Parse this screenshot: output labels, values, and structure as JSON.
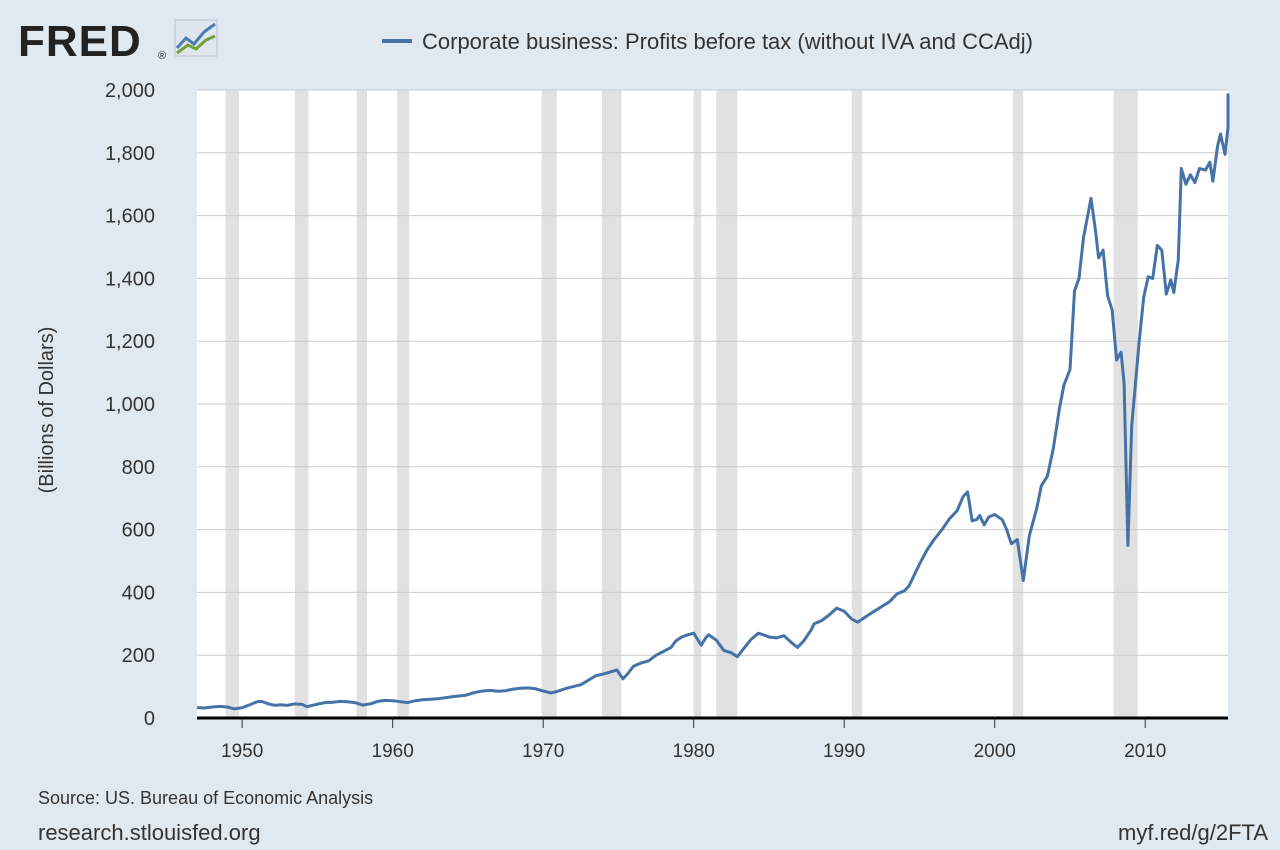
{
  "logo": {
    "text": "FRED",
    "registered": "®"
  },
  "legend": {
    "label": "Corporate business: Profits before tax (without IVA and CCAdj)"
  },
  "colors": {
    "series": "#4572a7",
    "background": "#e1e9f0",
    "plot": "#ffffff",
    "recession": "#e1e1e1",
    "grid": "#cccccc"
  },
  "footer": {
    "source": "Source: US. Bureau of Economic Analysis",
    "site": "research.stlouisfed.org",
    "shortlink": "myf.red/g/2FTA"
  },
  "chart_data": {
    "type": "line",
    "ylabel": "(Billions of Dollars)",
    "xlim": [
      1947.0,
      2015.5
    ],
    "ylim": [
      0,
      2000
    ],
    "yticks": [
      0,
      200,
      400,
      600,
      800,
      1000,
      1200,
      1400,
      1600,
      1800,
      2000
    ],
    "yticklabels": [
      "0",
      "200",
      "400",
      "600",
      "800",
      "1,000",
      "1,200",
      "1,400",
      "1,600",
      "1,800",
      "2,000"
    ],
    "xticks": [
      1950,
      1960,
      1970,
      1980,
      1990,
      2000,
      2010
    ],
    "xticklabels": [
      "1950",
      "1960",
      "1970",
      "1980",
      "1990",
      "2000",
      "2010"
    ],
    "grid": true,
    "legend_position": "top",
    "recessions": [
      [
        1948.9,
        1949.8
      ],
      [
        1953.5,
        1954.4
      ],
      [
        1957.6,
        1958.3
      ],
      [
        1960.3,
        1961.1
      ],
      [
        1969.9,
        1970.9
      ],
      [
        1973.9,
        1975.2
      ],
      [
        1980.0,
        1980.5
      ],
      [
        1981.5,
        1982.9
      ],
      [
        1990.5,
        1991.2
      ],
      [
        2001.2,
        2001.9
      ],
      [
        2007.9,
        2009.5
      ]
    ],
    "series": [
      {
        "name": "Corporate business: Profits before tax (without IVA and CCAdj)",
        "points": [
          [
            1947.0,
            33
          ],
          [
            1947.5,
            32
          ],
          [
            1948.0,
            35
          ],
          [
            1948.5,
            37
          ],
          [
            1949.0,
            35
          ],
          [
            1949.5,
            29
          ],
          [
            1950.0,
            33
          ],
          [
            1950.5,
            42
          ],
          [
            1951.0,
            52
          ],
          [
            1951.3,
            53
          ],
          [
            1951.8,
            44
          ],
          [
            1952.2,
            40
          ],
          [
            1952.5,
            42
          ],
          [
            1953.0,
            40
          ],
          [
            1953.5,
            45
          ],
          [
            1954.0,
            43
          ],
          [
            1954.3,
            36
          ],
          [
            1955.0,
            44
          ],
          [
            1955.5,
            49
          ],
          [
            1956.0,
            50
          ],
          [
            1956.5,
            53
          ],
          [
            1957.0,
            52
          ],
          [
            1957.5,
            49
          ],
          [
            1958.0,
            41
          ],
          [
            1958.5,
            45
          ],
          [
            1959.0,
            53
          ],
          [
            1959.5,
            56
          ],
          [
            1960.0,
            55
          ],
          [
            1960.5,
            52
          ],
          [
            1961.0,
            49
          ],
          [
            1961.5,
            55
          ],
          [
            1962.0,
            58
          ],
          [
            1963.0,
            61
          ],
          [
            1964.0,
            68
          ],
          [
            1964.8,
            72
          ],
          [
            1965.5,
            82
          ],
          [
            1966.0,
            86
          ],
          [
            1966.5,
            88
          ],
          [
            1967.0,
            85
          ],
          [
            1967.5,
            87
          ],
          [
            1968.0,
            92
          ],
          [
            1968.5,
            95
          ],
          [
            1969.0,
            96
          ],
          [
            1969.5,
            93
          ],
          [
            1970.0,
            86
          ],
          [
            1970.5,
            80
          ],
          [
            1970.9,
            84
          ],
          [
            1971.5,
            94
          ],
          [
            1972.0,
            100
          ],
          [
            1972.5,
            106
          ],
          [
            1973.0,
            120
          ],
          [
            1973.5,
            135
          ],
          [
            1974.0,
            140
          ],
          [
            1974.5,
            147
          ],
          [
            1974.9,
            153
          ],
          [
            1975.3,
            125
          ],
          [
            1975.6,
            140
          ],
          [
            1976.0,
            165
          ],
          [
            1976.5,
            175
          ],
          [
            1977.0,
            182
          ],
          [
            1977.5,
            200
          ],
          [
            1978.0,
            212
          ],
          [
            1978.5,
            225
          ],
          [
            1978.8,
            245
          ],
          [
            1979.2,
            258
          ],
          [
            1979.6,
            265
          ],
          [
            1980.0,
            270
          ],
          [
            1980.5,
            232
          ],
          [
            1980.8,
            255
          ],
          [
            1981.0,
            265
          ],
          [
            1981.5,
            248
          ],
          [
            1982.0,
            215
          ],
          [
            1982.5,
            208
          ],
          [
            1982.9,
            195
          ],
          [
            1983.3,
            220
          ],
          [
            1983.8,
            250
          ],
          [
            1984.3,
            270
          ],
          [
            1984.8,
            262
          ],
          [
            1985.0,
            258
          ],
          [
            1985.5,
            255
          ],
          [
            1986.0,
            262
          ],
          [
            1986.5,
            240
          ],
          [
            1986.9,
            225
          ],
          [
            1987.3,
            245
          ],
          [
            1987.8,
            280
          ],
          [
            1988.0,
            300
          ],
          [
            1988.5,
            310
          ],
          [
            1989.0,
            328
          ],
          [
            1989.5,
            350
          ],
          [
            1990.0,
            340
          ],
          [
            1990.5,
            315
          ],
          [
            1990.9,
            305
          ],
          [
            1991.5,
            325
          ],
          [
            1992.0,
            340
          ],
          [
            1992.5,
            355
          ],
          [
            1993.0,
            370
          ],
          [
            1993.5,
            395
          ],
          [
            1994.0,
            405
          ],
          [
            1994.3,
            420
          ],
          [
            1994.7,
            460
          ],
          [
            1995.0,
            490
          ],
          [
            1995.5,
            535
          ],
          [
            1996.0,
            570
          ],
          [
            1996.5,
            600
          ],
          [
            1997.0,
            635
          ],
          [
            1997.5,
            660
          ],
          [
            1997.9,
            705
          ],
          [
            1998.2,
            720
          ],
          [
            1998.5,
            628
          ],
          [
            1998.8,
            632
          ],
          [
            1999.0,
            645
          ],
          [
            1999.3,
            615
          ],
          [
            1999.6,
            640
          ],
          [
            2000.0,
            648
          ],
          [
            2000.5,
            632
          ],
          [
            2000.8,
            600
          ],
          [
            2001.1,
            555
          ],
          [
            2001.5,
            568
          ],
          [
            2001.9,
            438
          ],
          [
            2002.3,
            580
          ],
          [
            2002.8,
            670
          ],
          [
            2003.1,
            740
          ],
          [
            2003.5,
            770
          ],
          [
            2003.9,
            860
          ],
          [
            2004.3,
            985
          ],
          [
            2004.6,
            1060
          ],
          [
            2005.0,
            1110
          ],
          [
            2005.3,
            1360
          ],
          [
            2005.6,
            1400
          ],
          [
            2005.9,
            1530
          ],
          [
            2006.4,
            1655
          ],
          [
            2006.7,
            1550
          ],
          [
            2006.9,
            1465
          ],
          [
            2007.2,
            1490
          ],
          [
            2007.5,
            1345
          ],
          [
            2007.8,
            1300
          ],
          [
            2008.1,
            1140
          ],
          [
            2008.4,
            1165
          ],
          [
            2008.6,
            1065
          ],
          [
            2008.85,
            550
          ],
          [
            2009.1,
            930
          ],
          [
            2009.6,
            1200
          ],
          [
            2009.9,
            1340
          ],
          [
            2010.2,
            1405
          ],
          [
            2010.5,
            1400
          ],
          [
            2010.8,
            1505
          ],
          [
            2011.1,
            1490
          ],
          [
            2011.4,
            1350
          ],
          [
            2011.7,
            1395
          ],
          [
            2011.9,
            1355
          ],
          [
            2012.2,
            1460
          ],
          [
            2012.4,
            1750
          ],
          [
            2012.7,
            1700
          ],
          [
            2013.0,
            1730
          ],
          [
            2013.3,
            1705
          ],
          [
            2013.6,
            1750
          ],
          [
            2014.0,
            1745
          ],
          [
            2014.3,
            1770
          ],
          [
            2014.5,
            1710
          ],
          [
            2014.8,
            1820
          ],
          [
            2015.0,
            1860
          ],
          [
            2015.3,
            1795
          ],
          [
            2015.6,
            1880
          ],
          [
            2015.8,
            1985
          ],
          [
            2016.0,
            1950
          ]
        ]
      }
    ]
  }
}
